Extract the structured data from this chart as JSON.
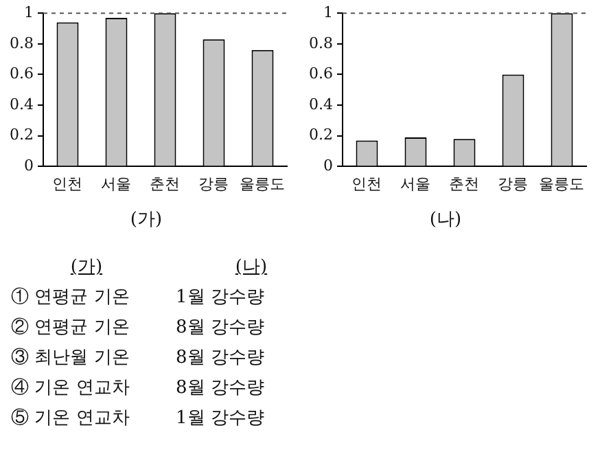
{
  "chart_data": [
    {
      "type": "bar",
      "title": "(가)",
      "categories": [
        "인천",
        "서울",
        "춘천",
        "강릉",
        "울릉도"
      ],
      "values": [
        0.94,
        0.97,
        1,
        0.83,
        0.76
      ],
      "color": "#c4c4c4",
      "ylim": [
        0,
        1
      ],
      "yticks": [
        0,
        0.2,
        0.4,
        0.6,
        0.8,
        1
      ],
      "grid": false,
      "legend": false,
      "ref_lines": [
        {
          "axis": "y",
          "value": 1,
          "color": "#555555",
          "line_style": "dashed"
        }
      ]
    },
    {
      "type": "bar",
      "title": "(나)",
      "categories": [
        "인천",
        "서울",
        "춘천",
        "강릉",
        "울릉도"
      ],
      "values": [
        0.17,
        0.19,
        0.18,
        0.6,
        1
      ],
      "color": "#c4c4c4",
      "ylim": [
        0,
        1
      ],
      "yticks": [
        0,
        0.2,
        0.4,
        0.6,
        0.8,
        1
      ],
      "grid": false,
      "legend": false,
      "ref_lines": [
        {
          "axis": "y",
          "value": 1,
          "color": "#555555",
          "line_style": "dashed"
        }
      ]
    },
    {
      "type": "other",
      "annotations": [
        "(가)",
        "(나)",
        "① 연평균 기온",
        "1월 강수량",
        "② 연평균 기온",
        "8월 강수량",
        "③ 최난월 기온",
        "8월 강수량",
        "④ 기온 연교차",
        "8월 강수량",
        "⑤ 기온 연교차",
        "1월 강수량"
      ]
    }
  ]
}
